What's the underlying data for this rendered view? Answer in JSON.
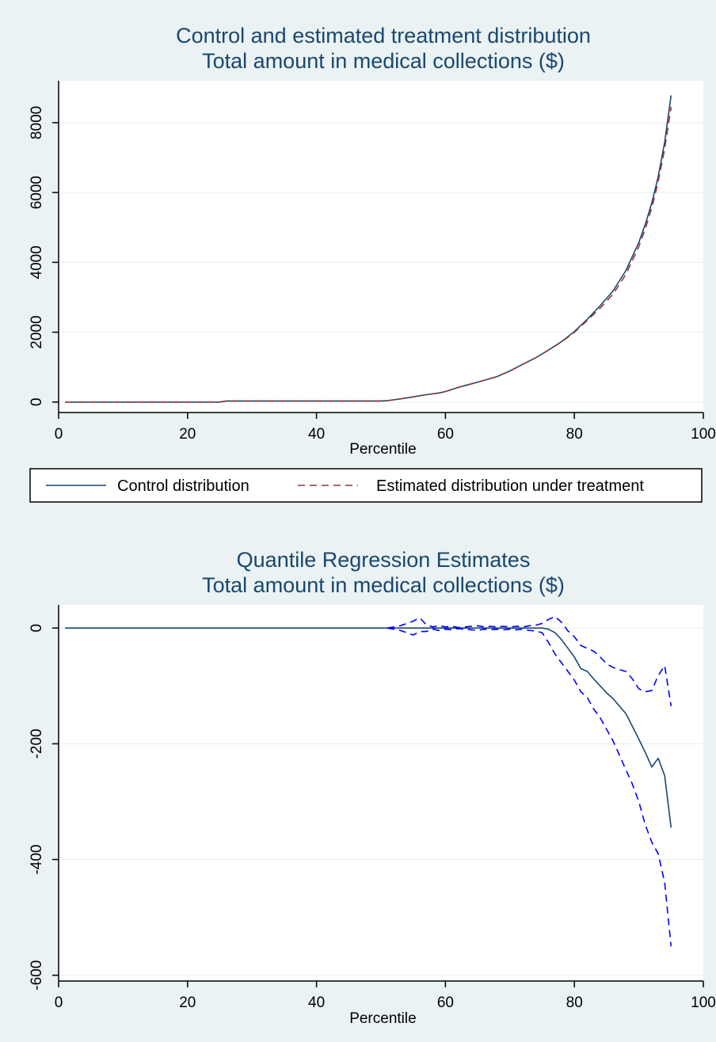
{
  "colors": {
    "background": "#eaf2f3",
    "plot_area": "#ffffff",
    "grid": "#eaf2f3",
    "title": "#1a476f",
    "control_line": "#1a476f",
    "treatment_line": "#90353b",
    "estimate_line": "#1a476f",
    "ci_line": "#0000ff"
  },
  "chart_data": [
    {
      "type": "line",
      "title": "Control and estimated treatment distribution",
      "subtitle": "Total amount in medical collections ($)",
      "xlabel": "Percentile",
      "ylabel": "",
      "xlim": [
        0,
        100
      ],
      "ylim": [
        -300,
        9200
      ],
      "xticks": [
        0,
        20,
        40,
        60,
        80,
        100
      ],
      "yticks": [
        0,
        2000,
        4000,
        6000,
        8000
      ],
      "xtick_labels": [
        "0",
        "20",
        "40",
        "60",
        "80",
        "100"
      ],
      "ytick_labels": [
        "0",
        "2000",
        "4000",
        "6000",
        "8000"
      ],
      "grid": true,
      "legend_position": "bottom",
      "legend": {
        "items": [
          {
            "label": "Control distribution",
            "style": "solid",
            "color": "#1a476f"
          },
          {
            "label": "Estimated distribution under treatment",
            "style": "dashed",
            "color": "#90353b"
          }
        ]
      },
      "series": [
        {
          "name": "Control distribution",
          "style": "solid",
          "color": "#1a476f",
          "x": [
            1,
            25,
            26,
            50,
            51,
            53,
            55,
            57,
            59,
            60,
            62,
            64,
            66,
            68,
            70,
            72,
            74,
            76,
            78,
            80,
            82,
            84,
            86,
            88,
            90,
            91,
            92,
            93,
            94,
            95
          ],
          "y": [
            0,
            0,
            30,
            30,
            40,
            90,
            150,
            210,
            260,
            300,
            420,
            520,
            620,
            730,
            890,
            1080,
            1270,
            1490,
            1730,
            2020,
            2370,
            2760,
            3180,
            3770,
            4570,
            5090,
            5700,
            6450,
            7440,
            8780
          ]
        },
        {
          "name": "Estimated distribution under treatment",
          "style": "dashed",
          "color": "#90353b",
          "x": [
            1,
            25,
            26,
            50,
            51,
            53,
            55,
            57,
            59,
            60,
            62,
            64,
            66,
            68,
            70,
            72,
            74,
            76,
            78,
            80,
            82,
            84,
            86,
            88,
            90,
            91,
            92,
            93,
            94,
            95
          ],
          "y": [
            0,
            0,
            30,
            30,
            40,
            90,
            150,
            210,
            260,
            300,
            420,
            520,
            620,
            730,
            890,
            1080,
            1270,
            1490,
            1720,
            2000,
            2340,
            2690,
            3090,
            3660,
            4450,
            4960,
            5560,
            6310,
            7250,
            8450
          ]
        }
      ]
    },
    {
      "type": "line",
      "title": "Quantile Regression Estimates",
      "subtitle": "Total amount in medical collections ($)",
      "xlabel": "Percentile",
      "ylabel": "",
      "xlim": [
        0,
        100
      ],
      "ylim": [
        -610,
        40
      ],
      "xticks": [
        0,
        20,
        40,
        60,
        80,
        100
      ],
      "yticks": [
        0,
        -200,
        -400,
        -600
      ],
      "xtick_labels": [
        "0",
        "20",
        "40",
        "60",
        "80",
        "100"
      ],
      "ytick_labels": [
        "0",
        "-200",
        "-400",
        "-600"
      ],
      "grid": true,
      "series": [
        {
          "style": "solid",
          "color": "#1a476f",
          "x": [
            1,
            75,
            76,
            77,
            78,
            79,
            80,
            81,
            82,
            83,
            84,
            85,
            86,
            87,
            88,
            89,
            90,
            91,
            92,
            93,
            94,
            95
          ],
          "y": [
            0,
            0,
            -2,
            -8,
            -20,
            -35,
            -50,
            -70,
            -75,
            -88,
            -100,
            -112,
            -122,
            -135,
            -148,
            -170,
            -192,
            -215,
            -240,
            -225,
            -255,
            -345
          ]
        },
        {
          "style": "dashed",
          "color": "#0000ff",
          "x": [
            51,
            52,
            53,
            54,
            55,
            56,
            57,
            58,
            59,
            60,
            61,
            62,
            63,
            64,
            65,
            66,
            67,
            68,
            69,
            70,
            71,
            72,
            73,
            74,
            75,
            76,
            77,
            78,
            79,
            80,
            81,
            82,
            83,
            84,
            85,
            86,
            87,
            88,
            89,
            90,
            91,
            92,
            93,
            94,
            95
          ],
          "y": [
            0,
            2,
            4,
            8,
            12,
            18,
            6,
            2,
            4,
            2,
            3,
            1,
            2,
            3,
            4,
            2,
            3,
            2,
            3,
            2,
            3,
            2,
            4,
            5,
            8,
            15,
            20,
            10,
            -5,
            -15,
            -30,
            -35,
            -40,
            -50,
            -62,
            -68,
            -72,
            -75,
            -88,
            -105,
            -110,
            -108,
            -82,
            -65,
            -135
          ]
        },
        {
          "style": "dashed",
          "color": "#0000ff",
          "x": [
            51,
            52,
            53,
            54,
            55,
            56,
            57,
            58,
            59,
            60,
            61,
            62,
            63,
            64,
            65,
            66,
            67,
            68,
            69,
            70,
            71,
            72,
            73,
            74,
            75,
            76,
            77,
            78,
            79,
            80,
            81,
            82,
            83,
            84,
            85,
            86,
            87,
            88,
            89,
            90,
            91,
            92,
            93,
            94,
            95
          ],
          "y": [
            0,
            -2,
            -4,
            -8,
            -12,
            -6,
            -6,
            -2,
            -4,
            -2,
            -3,
            -1,
            -2,
            -3,
            -4,
            -2,
            -3,
            -2,
            -3,
            -2,
            -3,
            -2,
            -4,
            -5,
            -8,
            -25,
            -45,
            -60,
            -75,
            -90,
            -110,
            -120,
            -140,
            -155,
            -175,
            -195,
            -220,
            -245,
            -270,
            -300,
            -340,
            -370,
            -390,
            -440,
            -550
          ]
        }
      ]
    }
  ]
}
